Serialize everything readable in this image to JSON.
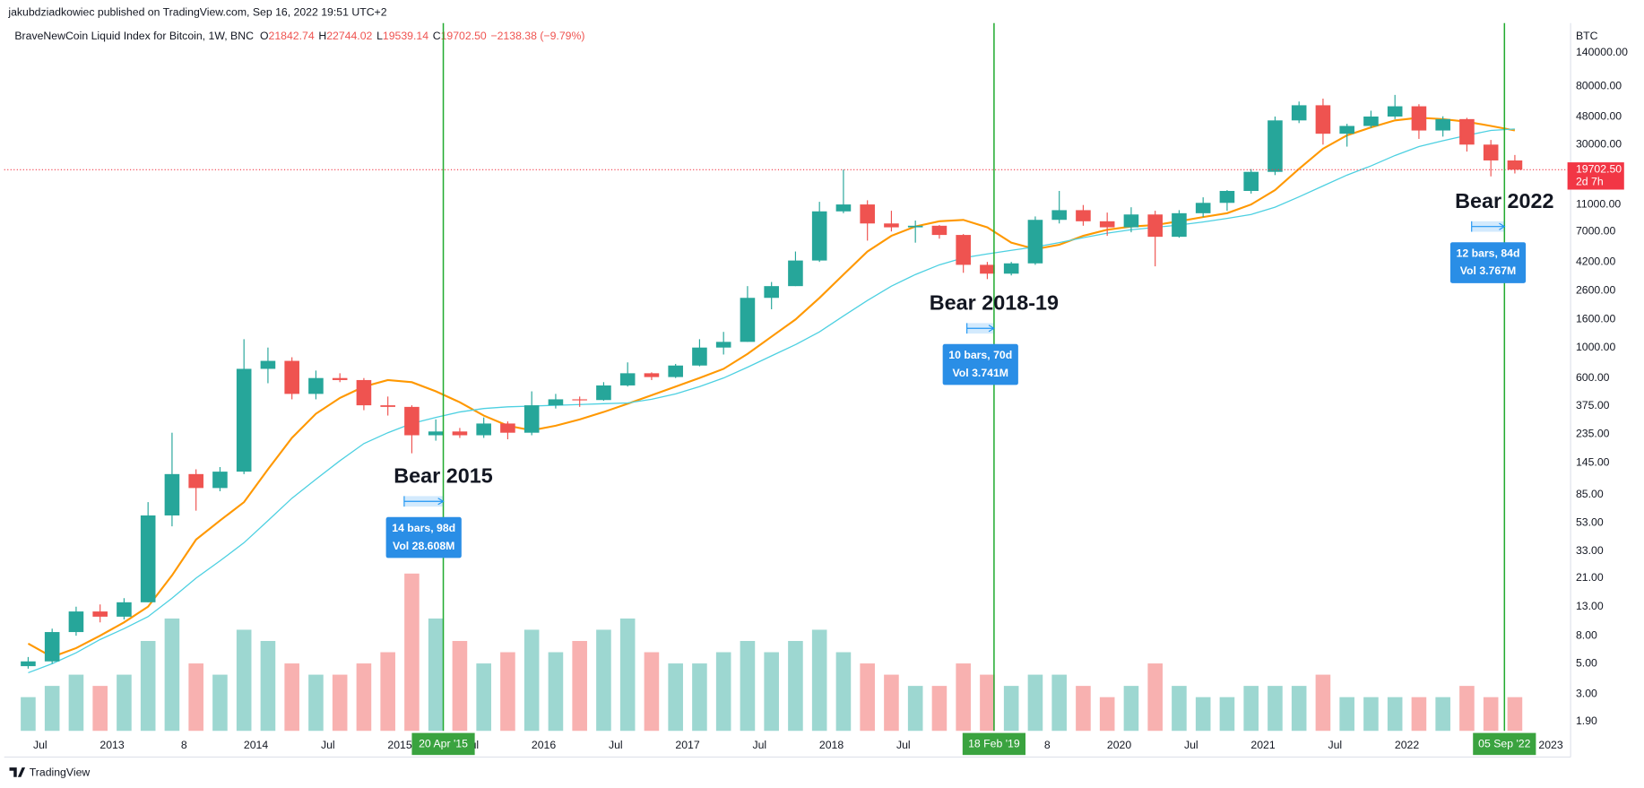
{
  "header": {
    "publisher": "jakubdziadkowiec published on TradingView.com, Sep 16, 2022 19:51 UTC+2",
    "footer": "TradingView"
  },
  "chart_data": {
    "type": "candlestick",
    "title": "BraveNewCoin Liquid Index for Bitcoin, 1W, BNC",
    "legend_values": [
      {
        "label": "O",
        "value": "21842.74"
      },
      {
        "label": "H",
        "value": "22744.02"
      },
      {
        "label": "L",
        "value": "19539.14"
      },
      {
        "label": "C",
        "value": "19702.50"
      }
    ],
    "change": "−2138.38 (−9.79%)",
    "currency": "BTC",
    "x": [
      "2012-05",
      "2012-07",
      "2012-09",
      "2012-11",
      "2013-01",
      "2013-03",
      "2013-05",
      "2013-07",
      "2013-09",
      "2013-11",
      "2014-01",
      "2014-03",
      "2014-05",
      "2014-07",
      "2014-09",
      "2014-11",
      "2015-01",
      "2015-03",
      "2015-05",
      "2015-07",
      "2015-09",
      "2015-11",
      "2016-01",
      "2016-03",
      "2016-05",
      "2016-07",
      "2016-09",
      "2016-11",
      "2017-01",
      "2017-03",
      "2017-05",
      "2017-07",
      "2017-09",
      "2017-11",
      "2018-01",
      "2018-03",
      "2018-05",
      "2018-07",
      "2018-09",
      "2018-11",
      "2019-01",
      "2019-03",
      "2019-05",
      "2019-07",
      "2019-09",
      "2019-11",
      "2020-01",
      "2020-03",
      "2020-05",
      "2020-07",
      "2020-09",
      "2020-11",
      "2021-01",
      "2021-03",
      "2021-05",
      "2021-07",
      "2021-09",
      "2021-11",
      "2022-01",
      "2022-03",
      "2022-05",
      "2022-07",
      "2022-09"
    ],
    "open": [
      4.8,
      5.2,
      8.5,
      12,
      11,
      14,
      60,
      120,
      95,
      125,
      700,
      800,
      460,
      600,
      580,
      380,
      370,
      230,
      245,
      230,
      280,
      240,
      380,
      420,
      415,
      530,
      650,
      610,
      740,
      1000,
      1100,
      2300,
      2800,
      4300,
      9800,
      11000,
      8000,
      7500,
      7700,
      6600,
      4000,
      3450,
      4100,
      8500,
      10000,
      8300,
      7500,
      9300,
      6400,
      9500,
      11300,
      13800,
      19000,
      45000,
      58000,
      36000,
      41000,
      48000,
      57000,
      38000,
      46000,
      30000,
      23000
    ],
    "high": [
      5.6,
      9,
      13,
      13.5,
      15,
      75,
      240,
      130,
      135,
      1150,
      1000,
      850,
      680,
      650,
      600,
      440,
      380,
      300,
      260,
      310,
      290,
      480,
      460,
      440,
      560,
      780,
      660,
      760,
      1150,
      1300,
      2800,
      3000,
      5000,
      11500,
      19700,
      11800,
      9900,
      8400,
      7800,
      6700,
      4200,
      4200,
      9000,
      13800,
      10900,
      9600,
      10500,
      9900,
      10000,
      12400,
      14000,
      19900,
      48000,
      61800,
      64800,
      42500,
      52900,
      69000,
      59000,
      48200,
      47000,
      32400,
      25200
    ],
    "low": [
      4.6,
      5,
      8,
      10,
      10.5,
      14,
      50,
      65,
      90,
      120,
      550,
      420,
      420,
      560,
      350,
      320,
      170,
      210,
      220,
      220,
      215,
      230,
      360,
      370,
      410,
      520,
      580,
      600,
      730,
      890,
      1100,
      1900,
      2800,
      4200,
      9500,
      6000,
      7000,
      5800,
      6200,
      3500,
      3150,
      3350,
      4000,
      8000,
      7700,
      6500,
      6900,
      3900,
      6300,
      8900,
      9900,
      13200,
      18000,
      43000,
      30000,
      29000,
      39600,
      46000,
      33000,
      34300,
      26700,
      17600,
      18500
    ],
    "close": [
      5.2,
      8.5,
      12,
      11,
      14,
      60,
      120,
      95,
      125,
      700,
      800,
      460,
      600,
      580,
      380,
      370,
      230,
      245,
      230,
      280,
      240,
      380,
      420,
      415,
      530,
      650,
      610,
      740,
      1000,
      1100,
      2300,
      2800,
      4300,
      9800,
      11000,
      8000,
      7500,
      7700,
      6600,
      4000,
      3450,
      4100,
      8500,
      10000,
      8300,
      7500,
      9300,
      6400,
      9500,
      11300,
      13800,
      19000,
      45000,
      58000,
      36000,
      41000,
      48000,
      57000,
      38000,
      46000,
      30000,
      23000,
      19702.5
    ],
    "volume": [
      3,
      4,
      5,
      4,
      5,
      8,
      10,
      6,
      5,
      9,
      8,
      6,
      5,
      5,
      6,
      7,
      14,
      10,
      8,
      6,
      7,
      9,
      7,
      8,
      9,
      10,
      7,
      6,
      6,
      7,
      8,
      7,
      8,
      9,
      7,
      6,
      5,
      4,
      4,
      6,
      5,
      4,
      5,
      5,
      4,
      3,
      4,
      6,
      4,
      3,
      3,
      4,
      4,
      4,
      5,
      3,
      3,
      3,
      3,
      3,
      4,
      3,
      3
    ],
    "up_color": "#26a69a",
    "down_color": "#ef5350",
    "moving_averages": [
      {
        "color": "#ff9800",
        "values": [
          7,
          5.6,
          6.5,
          8,
          10,
          13,
          22,
          40,
          55,
          75,
          130,
          220,
          330,
          430,
          520,
          580,
          560,
          480,
          400,
          320,
          270,
          250,
          270,
          300,
          340,
          390,
          450,
          520,
          600,
          700,
          900,
          1200,
          1600,
          2300,
          3400,
          5000,
          6500,
          7600,
          8300,
          8500,
          7500,
          5800,
          5200,
          5600,
          6500,
          7200,
          7600,
          7800,
          8300,
          8900,
          9500,
          11000,
          14000,
          20000,
          28000,
          35000,
          40000,
          45000,
          47000,
          46000,
          44000,
          41000,
          38000
        ]
      },
      {
        "color": "#4dd0e1",
        "values": [
          4.3,
          5,
          6,
          7.5,
          9,
          11,
          15,
          21,
          28,
          38,
          55,
          80,
          110,
          150,
          200,
          240,
          280,
          310,
          340,
          360,
          370,
          375,
          380,
          385,
          390,
          395,
          420,
          460,
          520,
          600,
          720,
          870,
          1050,
          1300,
          1700,
          2200,
          2800,
          3400,
          4000,
          4500,
          4800,
          5100,
          5400,
          5800,
          6300,
          6800,
          7200,
          7500,
          7800,
          8200,
          8700,
          9300,
          10500,
          12500,
          15000,
          18000,
          21000,
          25000,
          29000,
          32000,
          35000,
          38000,
          39000
        ]
      }
    ],
    "xlim": [
      "2012-04",
      "2023-03"
    ],
    "xticks": [
      {
        "value": "2012-07",
        "label": "Jul"
      },
      {
        "value": "2013-01",
        "label": "2013"
      },
      {
        "value": "2013-07",
        "label": "8"
      },
      {
        "value": "2014-01",
        "label": "2014"
      },
      {
        "value": "2014-07",
        "label": "Jul"
      },
      {
        "value": "2015-01",
        "label": "2015"
      },
      {
        "value": "2015-07",
        "label": "Jul"
      },
      {
        "value": "2016-01",
        "label": "2016"
      },
      {
        "value": "2016-07",
        "label": "Jul"
      },
      {
        "value": "2017-01",
        "label": "2017"
      },
      {
        "value": "2017-07",
        "label": "Jul"
      },
      {
        "value": "2018-01",
        "label": "2018"
      },
      {
        "value": "2018-07",
        "label": "Jul"
      },
      {
        "value": "2019-07",
        "label": "8"
      },
      {
        "value": "2020-01",
        "label": "2020"
      },
      {
        "value": "2020-07",
        "label": "Jul"
      },
      {
        "value": "2021-01",
        "label": "2021"
      },
      {
        "value": "2021-07",
        "label": "Jul"
      },
      {
        "value": "2022-01",
        "label": "2022"
      },
      {
        "value": "2023-01",
        "label": "2023"
      }
    ],
    "ylim": [
      1.5,
      260000
    ],
    "log_scale": true,
    "grid": false,
    "yticks": [
      {
        "value": 140000,
        "label": "140000.00"
      },
      {
        "value": 80000,
        "label": "80000.00"
      },
      {
        "value": 48000,
        "label": "48000.00"
      },
      {
        "value": 30000,
        "label": "30000.00"
      },
      {
        "value": 11000,
        "label": "11000.00"
      },
      {
        "value": 7000,
        "label": "7000.00"
      },
      {
        "value": 4200,
        "label": "4200.00"
      },
      {
        "value": 2600,
        "label": "2600.00"
      },
      {
        "value": 1600,
        "label": "1600.00"
      },
      {
        "value": 1000,
        "label": "1000.00"
      },
      {
        "value": 600,
        "label": "600.00"
      },
      {
        "value": 375,
        "label": "375.00"
      },
      {
        "value": 235,
        "label": "235.00"
      },
      {
        "value": 145,
        "label": "145.00"
      },
      {
        "value": 85,
        "label": "85.00"
      },
      {
        "value": 53,
        "label": "53.00"
      },
      {
        "value": 33,
        "label": "33.00"
      },
      {
        "value": 21,
        "label": "21.00"
      },
      {
        "value": 13,
        "label": "13.00"
      },
      {
        "value": 8,
        "label": "8.00"
      },
      {
        "value": 5,
        "label": "5.00"
      },
      {
        "value": 3,
        "label": "3.00"
      },
      {
        "value": 1.9,
        "label": "1.90"
      }
    ],
    "last_price": {
      "value": 19702.5,
      "label": "19702.50"
    },
    "countdown": "2d 7h",
    "markers": [
      {
        "date": "2015-04-20",
        "label": "20 Apr '15"
      },
      {
        "date": "2019-02-18",
        "label": "18 Feb '19"
      },
      {
        "date": "2022-09-05",
        "label": "05 Sep '22"
      }
    ],
    "annotations": [
      {
        "title": "Bear 2015",
        "bars": "14 bars, 98d",
        "volume": "Vol 28.608M",
        "start": "2015-01-12",
        "level": 76
      },
      {
        "title": "Bear 2018-19",
        "bars": "10 bars, 70d",
        "volume": "Vol 3.741M",
        "start": "2018-12-10",
        "level": 1380
      },
      {
        "title": "Bear 2022",
        "bars": "12 bars, 84d",
        "volume": "Vol 3.767M",
        "start": "2022-06-13",
        "level": 7600
      }
    ]
  }
}
